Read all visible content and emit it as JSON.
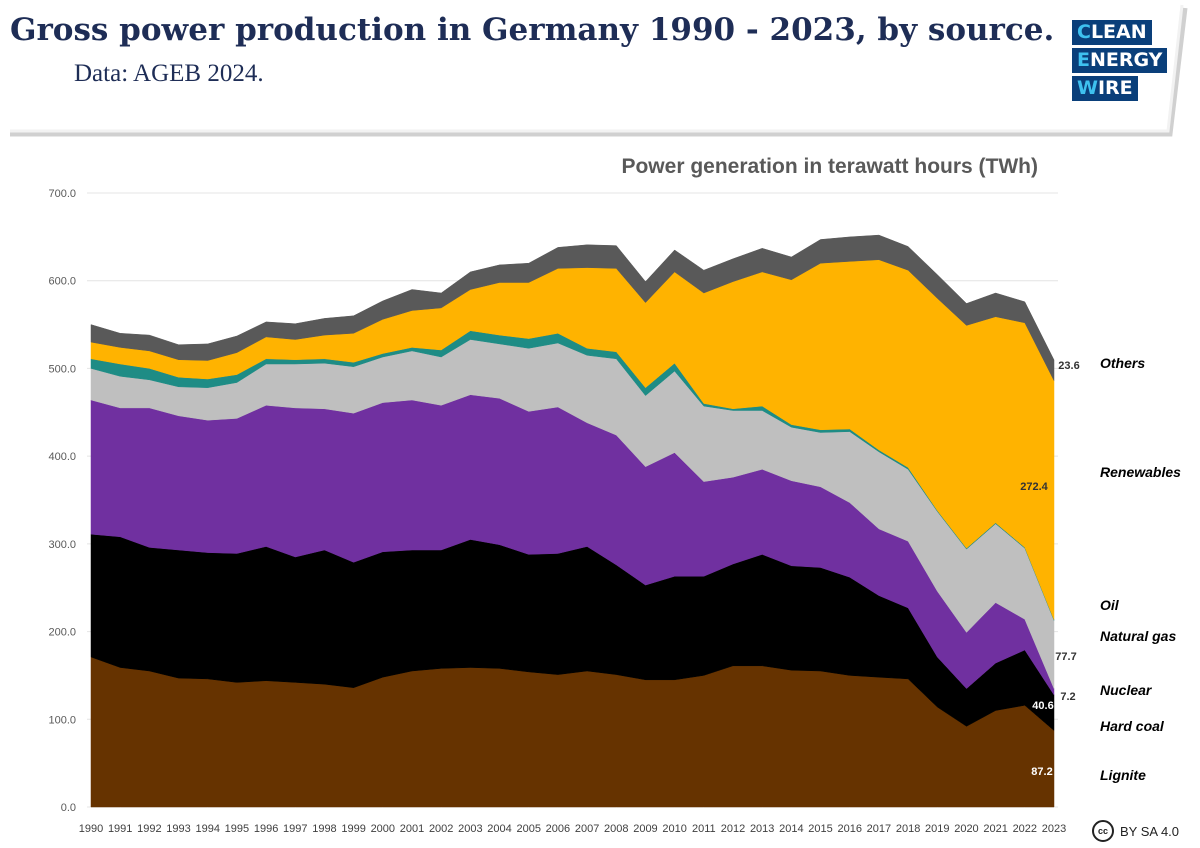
{
  "header": {
    "title": "Gross power production in Germany 1990 - 2023, by source.",
    "subtitle": "Data: AGEB 2024."
  },
  "logo": {
    "line1": "CLEAN",
    "line2": "ENERGY",
    "line3": "WIRE"
  },
  "license": {
    "badge": "cc",
    "text": "BY SA 4.0"
  },
  "chart_data": {
    "type": "area",
    "title": "Power generation in terawatt hours (TWh)",
    "x": [
      1990,
      1991,
      1992,
      1993,
      1994,
      1995,
      1996,
      1997,
      1998,
      1999,
      2000,
      2001,
      2002,
      2003,
      2004,
      2005,
      2006,
      2007,
      2008,
      2009,
      2010,
      2011,
      2012,
      2013,
      2014,
      2015,
      2016,
      2017,
      2018,
      2019,
      2020,
      2021,
      2022,
      2023
    ],
    "ylim": [
      0,
      700
    ],
    "yticks": [
      "0.0",
      "100.0",
      "200.0",
      "300.0",
      "400.0",
      "500.0",
      "600.0",
      "700.0"
    ],
    "grid": true,
    "stacked": true,
    "series": [
      {
        "name": "Lignite",
        "color": "#663300",
        "end_label": "87.2",
        "label_color": "#ffffff",
        "values": [
          171,
          159,
          155,
          147,
          146,
          142,
          144,
          142,
          140,
          136,
          148,
          155,
          158,
          159,
          158,
          154,
          151,
          155,
          151,
          145,
          145,
          150,
          161,
          161,
          156,
          155,
          150,
          148,
          146,
          114,
          92,
          110,
          116,
          87.2
        ]
      },
      {
        "name": "Hard coal",
        "color": "#000000",
        "end_label": "40.6",
        "label_color": "#ffffff",
        "values": [
          140,
          149,
          141,
          146,
          144,
          147,
          153,
          143,
          153,
          143,
          143,
          138,
          135,
          146,
          141,
          134,
          138,
          142,
          125,
          108,
          118,
          113,
          116,
          127,
          119,
          118,
          112,
          93,
          81,
          57,
          43,
          54,
          63,
          40.6
        ]
      },
      {
        "name": "Nuclear",
        "color": "#7030a0",
        "end_label": "7.2",
        "label_color": "#333333",
        "values": [
          153,
          147,
          159,
          153,
          151,
          154,
          161,
          170,
          161,
          170,
          170,
          171,
          165,
          165,
          167,
          163,
          167,
          141,
          148,
          135,
          141,
          108,
          99,
          97,
          97,
          92,
          85,
          76,
          76,
          75,
          64,
          69,
          35,
          7.2
        ]
      },
      {
        "name": "Natural gas",
        "color": "#bfbfbf",
        "end_label": "77.7",
        "label_color": "#333333",
        "values": [
          36,
          36,
          32,
          33,
          37,
          41,
          47,
          50,
          52,
          53,
          52,
          56,
          55,
          63,
          62,
          72,
          73,
          77,
          87,
          81,
          93,
          86,
          76,
          67,
          61,
          62,
          81,
          88,
          82,
          91,
          95,
          90,
          81,
          77.7
        ]
      },
      {
        "name": "Oil",
        "color": "#1e8c85",
        "end_label": "",
        "label_color": "#333333",
        "values": [
          11,
          14,
          13,
          11,
          10,
          9,
          6,
          5,
          5,
          5,
          4,
          4,
          8,
          10,
          10,
          11,
          11,
          8,
          8,
          9,
          9,
          3,
          2,
          5,
          3,
          3,
          3,
          2,
          2,
          1,
          1,
          1,
          1,
          1
        ]
      },
      {
        "name": "Renewables",
        "color": "#ffb300",
        "end_label": "272.4",
        "label_color": "#333333",
        "values": [
          19,
          19,
          20,
          20,
          21,
          25,
          25,
          23,
          27,
          33,
          39,
          42,
          48,
          47,
          60,
          64,
          74,
          92,
          95,
          97,
          104,
          126,
          145,
          153,
          165,
          190,
          191,
          217,
          225,
          242,
          254,
          235,
          256,
          272.4
        ]
      },
      {
        "name": "Others",
        "color": "#595959",
        "end_label": "23.6",
        "label_color": "#333333",
        "values": [
          20,
          16,
          18,
          17,
          19,
          19,
          17,
          18,
          19,
          20,
          21,
          24,
          17,
          20,
          20,
          22,
          24,
          26,
          26,
          24,
          25,
          26,
          26,
          27,
          26,
          27,
          28,
          28,
          27,
          27,
          25,
          27,
          24,
          23.6
        ]
      }
    ]
  }
}
